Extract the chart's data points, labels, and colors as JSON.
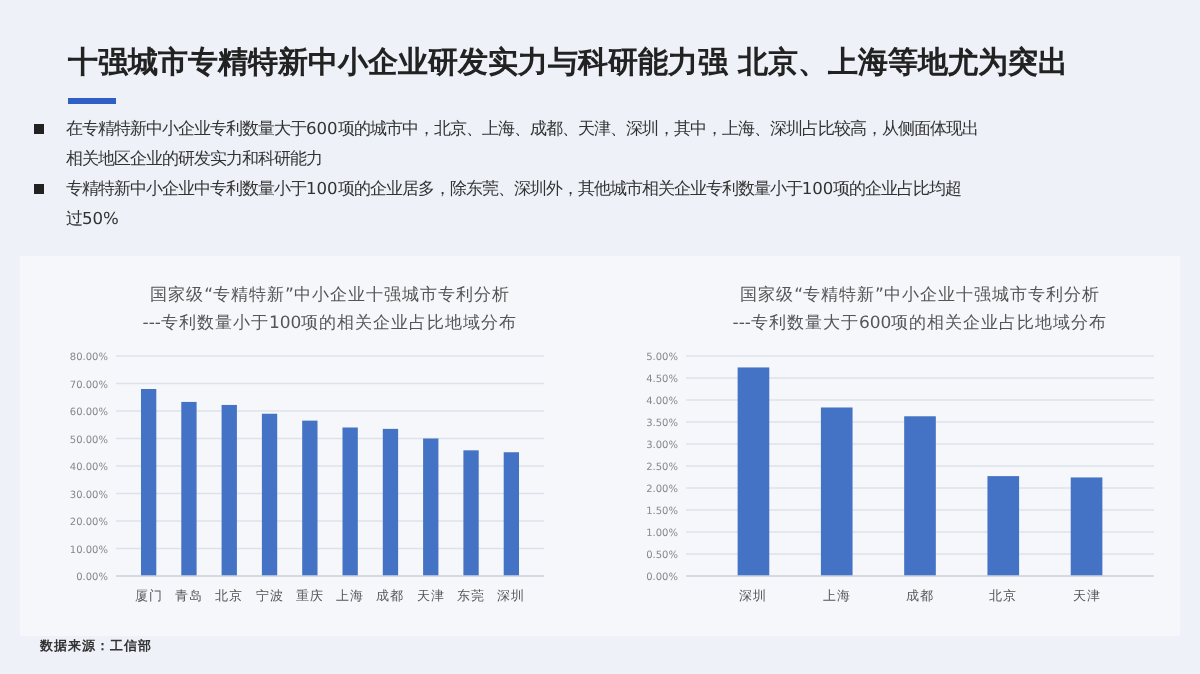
{
  "chart_data": [
    {
      "type": "bar",
      "title": "国家级“专精特新”中小企业十强城市专利分析",
      "subtitle": "---专利数量小于100项的相关企业占比地域分布",
      "annotations": [
        "十强城市专精特新中小企业研发实力与科研能力强 北京、上海等地尤为突出",
        "在专精特新中小企业专利数量大于600项的城市中，北京、上海、成都、天津、深圳，其中，上海、深圳占比较高，从侧面体现出相关地区企业的研发实力和科研能力",
        "专精特新中小企业中专利数量小于100项的企业居多，除东莞、深圳外，其他城市相关企业专利数量小于100项的企业占比均超过50%",
        "数据来源：工信部"
      ],
      "categories": [
        "厦门",
        "青岛",
        "北京",
        "宁波",
        "重庆",
        "上海",
        "成都",
        "天津",
        "东莞",
        "深圳"
      ],
      "values": [
        68,
        63.3,
        62.2,
        59,
        56.5,
        54,
        53.5,
        50,
        45.7,
        45
      ],
      "color": "#4472c4",
      "ylim": [
        0,
        80
      ],
      "yticks": [
        {
          "value": 0,
          "label": "0.00%"
        },
        {
          "value": 10,
          "label": "10.00%"
        },
        {
          "value": 20,
          "label": "20.00%"
        },
        {
          "value": 30,
          "label": "30.00%"
        },
        {
          "value": 40,
          "label": "40.00%"
        },
        {
          "value": 50,
          "label": "50.00%"
        },
        {
          "value": 60,
          "label": "60.00%"
        },
        {
          "value": 70,
          "label": "70.00%"
        },
        {
          "value": 80,
          "label": "80.00%"
        }
      ],
      "grid": "y"
    },
    {
      "type": "bar",
      "title": "国家级“专精特新”中小企业十强城市专利分析",
      "subtitle": "---专利数量大于600项的相关企业占比地域分布",
      "categories": [
        "深圳",
        "上海",
        "成都",
        "北京",
        "天津"
      ],
      "values": [
        4.74,
        3.83,
        3.63,
        2.27,
        2.24
      ],
      "color": "#4472c4",
      "ylim": [
        0,
        5
      ],
      "yticks": [
        {
          "value": 0,
          "label": "0.00%"
        },
        {
          "value": 0.5,
          "label": "0.50%"
        },
        {
          "value": 1,
          "label": "1.00%"
        },
        {
          "value": 1.5,
          "label": "1.50%"
        },
        {
          "value": 2,
          "label": "2.00%"
        },
        {
          "value": 2.5,
          "label": "2.50%"
        },
        {
          "value": 3,
          "label": "3.00%"
        },
        {
          "value": 3.5,
          "label": "3.50%"
        },
        {
          "value": 4,
          "label": "4.00%"
        },
        {
          "value": 4.5,
          "label": "4.50%"
        },
        {
          "value": 5,
          "label": "5.00%"
        }
      ],
      "grid": "y"
    }
  ]
}
